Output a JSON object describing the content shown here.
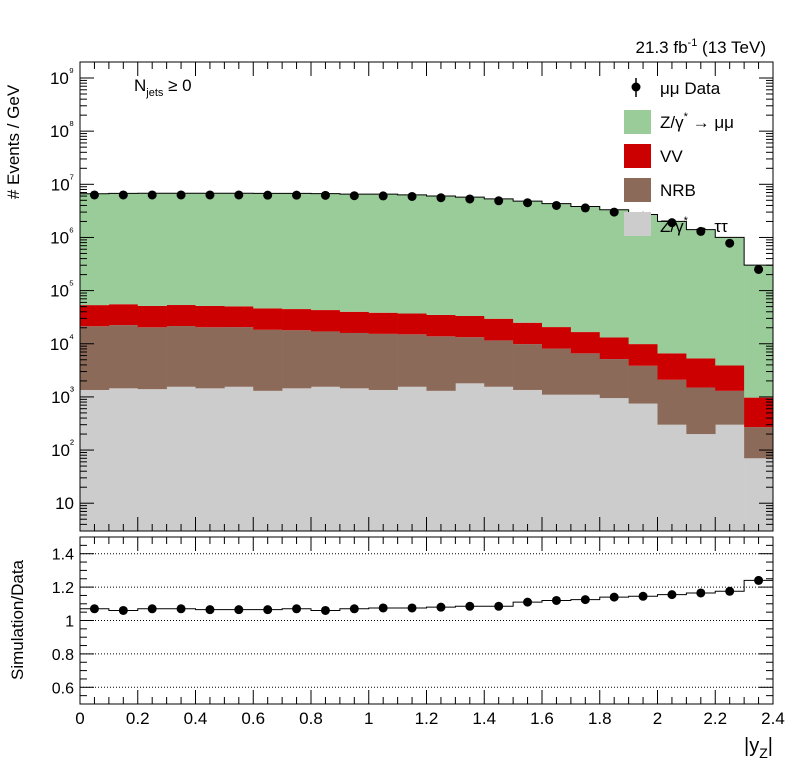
{
  "lumi_label": "21.3 fb",
  "lumi_sup": "-1",
  "lumi_energy": " (13 TeV)",
  "njets": {
    "base": "N",
    "sub": "jets",
    "rel": " ≥ 0"
  },
  "legend": {
    "data": "μμ Data",
    "zmm_a": "Z/γ",
    "zmm_sup": "*",
    "zmm_b": " → μμ",
    "vv": "VV",
    "nrb": "NRB",
    "ztt_a": "Z/γ",
    "ztt_sup": "*",
    "ztt_b": " → ττ"
  },
  "ylabel_top": "# Events / GeV",
  "ylabel_bottom": "Simulation/Data",
  "xlabel": {
    "base": "|y",
    "sub": "Z",
    "end": "|"
  },
  "colors": {
    "zmm": "#99cc99",
    "vv": "#cc0000",
    "nrb": "#8c6a5a",
    "ztt": "#cccccc",
    "data": "#000000"
  },
  "chart_data": [
    {
      "type": "area",
      "plot": "top",
      "scale": "log",
      "xlim": [
        0,
        2.4
      ],
      "ylim": [
        3,
        2000000000
      ],
      "x_edges": [
        0,
        0.1,
        0.2,
        0.3,
        0.4,
        0.5,
        0.6,
        0.7,
        0.8,
        0.9,
        1.0,
        1.1,
        1.2,
        1.3,
        1.4,
        1.5,
        1.6,
        1.7,
        1.8,
        1.9,
        2.0,
        2.1,
        2.2,
        2.3,
        2.4
      ],
      "ytick_labels": [
        "10",
        "10²",
        "10³",
        "10⁴",
        "10⁵",
        "10⁶",
        "10⁷",
        "10⁸",
        "10⁹"
      ],
      "ytick_values": [
        10,
        100,
        1000,
        10000,
        100000,
        1000000,
        10000000,
        100000000,
        1000000000
      ],
      "stack": [
        {
          "name": "Z/γ* → ττ",
          "key": "ztt",
          "values": [
            1350,
            1450,
            1400,
            1550,
            1450,
            1550,
            1300,
            1450,
            1550,
            1450,
            1350,
            1550,
            1300,
            1800,
            1550,
            1350,
            1100,
            1100,
            950,
            750,
            300,
            200,
            300,
            70
          ]
        },
        {
          "name": "NRB",
          "key": "nrb",
          "values": [
            20000,
            21000,
            19000,
            20000,
            19000,
            19000,
            17000,
            16500,
            15500,
            14500,
            14000,
            13500,
            12500,
            11500,
            10000,
            8500,
            7000,
            5500,
            4200,
            3100,
            1800,
            1300,
            1000,
            200
          ]
        },
        {
          "name": "VV",
          "key": "vv",
          "values": [
            32000,
            33000,
            31000,
            32000,
            31000,
            30000,
            28000,
            27000,
            26000,
            24000,
            23000,
            22000,
            21000,
            20000,
            18000,
            15000,
            12500,
            10000,
            8000,
            6000,
            4500,
            3800,
            2600,
            700
          ]
        },
        {
          "name": "Z/γ* → μμ",
          "key": "zmm",
          "values": [
            6600000,
            6700000,
            6750000,
            6750000,
            6750000,
            6750000,
            6700000,
            6700000,
            6650000,
            6500000,
            6500000,
            6300000,
            6000000,
            5700000,
            5300000,
            4800000,
            4300000,
            3800000,
            3300000,
            2700000,
            2000000,
            1400000,
            1000000,
            300000
          ]
        }
      ],
      "data_series": {
        "name": "μμ Data",
        "x": [
          0.05,
          0.15,
          0.25,
          0.35,
          0.45,
          0.55,
          0.65,
          0.75,
          0.85,
          0.95,
          1.05,
          1.15,
          1.25,
          1.35,
          1.45,
          1.55,
          1.65,
          1.75,
          1.85,
          1.95,
          2.05,
          2.15,
          2.25,
          2.35
        ],
        "values": [
          6300000,
          6300000,
          6300000,
          6300000,
          6300000,
          6300000,
          6250000,
          6250000,
          6200000,
          6100000,
          6050000,
          5900000,
          5600000,
          5300000,
          4900000,
          4500000,
          4000000,
          3600000,
          3000000,
          2500000,
          1900000,
          1300000,
          780000,
          250000
        ]
      }
    },
    {
      "type": "scatter",
      "plot": "bottom",
      "xlim": [
        0,
        2.4
      ],
      "ylim": [
        0.5,
        1.5
      ],
      "ytick_labels": [
        "0.6",
        "0.8",
        "1",
        "1.2",
        "1.4"
      ],
      "ytick_values": [
        0.6,
        0.8,
        1.0,
        1.2,
        1.4
      ],
      "xtick_labels": [
        "0",
        "0.2",
        "0.4",
        "0.6",
        "0.8",
        "1",
        "1.2",
        "1.4",
        "1.6",
        "1.8",
        "2",
        "2.2",
        "2.4"
      ],
      "xtick_values": [
        0,
        0.2,
        0.4,
        0.6,
        0.8,
        1.0,
        1.2,
        1.4,
        1.6,
        1.8,
        2.0,
        2.2,
        2.4
      ],
      "x": [
        0.05,
        0.15,
        0.25,
        0.35,
        0.45,
        0.55,
        0.65,
        0.75,
        0.85,
        0.95,
        1.05,
        1.15,
        1.25,
        1.35,
        1.45,
        1.55,
        1.65,
        1.75,
        1.85,
        1.95,
        2.05,
        2.15,
        2.25,
        2.35
      ],
      "values": [
        1.07,
        1.06,
        1.07,
        1.07,
        1.065,
        1.065,
        1.065,
        1.07,
        1.06,
        1.07,
        1.075,
        1.075,
        1.08,
        1.085,
        1.085,
        1.11,
        1.12,
        1.125,
        1.14,
        1.145,
        1.155,
        1.165,
        1.175,
        1.24
      ],
      "dotted_lines": [
        0.6,
        0.8,
        1.0,
        1.2,
        1.4
      ]
    }
  ]
}
